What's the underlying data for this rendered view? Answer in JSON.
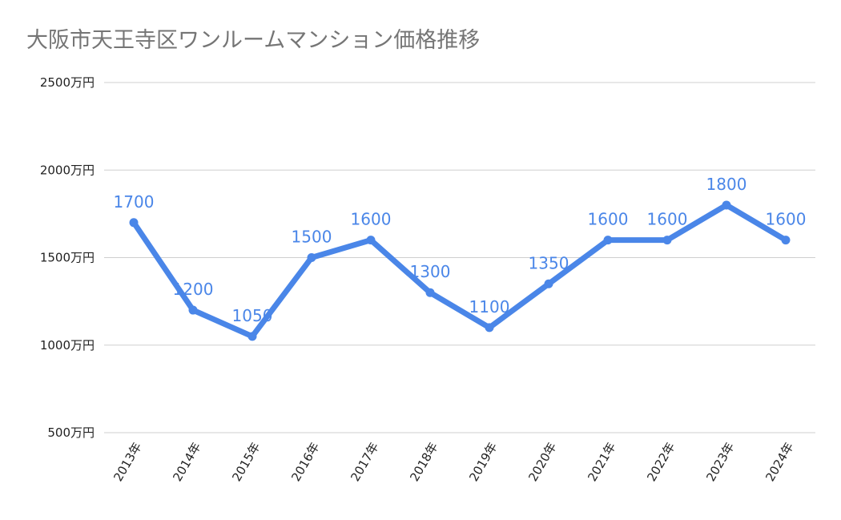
{
  "chart_data": {
    "type": "line",
    "title": "大阪市天王寺区ワンルームマンション価格推移",
    "xlabel": "",
    "ylabel": "",
    "categories": [
      "2013年",
      "2014年",
      "2015年",
      "2016年",
      "2017年",
      "2018年",
      "2019年",
      "2020年",
      "2021年",
      "2022年",
      "2023年",
      "2024年"
    ],
    "series": [
      {
        "values": [
          1700,
          1200,
          1050,
          1500,
          1600,
          1300,
          1100,
          1350,
          1600,
          1600,
          1800,
          1600
        ],
        "data_labels": [
          "1700",
          "1200",
          "1050",
          "1500",
          "1600",
          "1300",
          "1100",
          "1350",
          "1600",
          "1600",
          "1800",
          "1600"
        ],
        "color": "#4a86e8"
      }
    ],
    "ylim": [
      500,
      2500
    ],
    "yticks": [
      500,
      1000,
      1500,
      2000,
      2500
    ],
    "ytick_labels": [
      "500万円",
      "1000万円",
      "1500万円",
      "2000万円",
      "2500万円"
    ],
    "grid": true,
    "legend": "none"
  }
}
